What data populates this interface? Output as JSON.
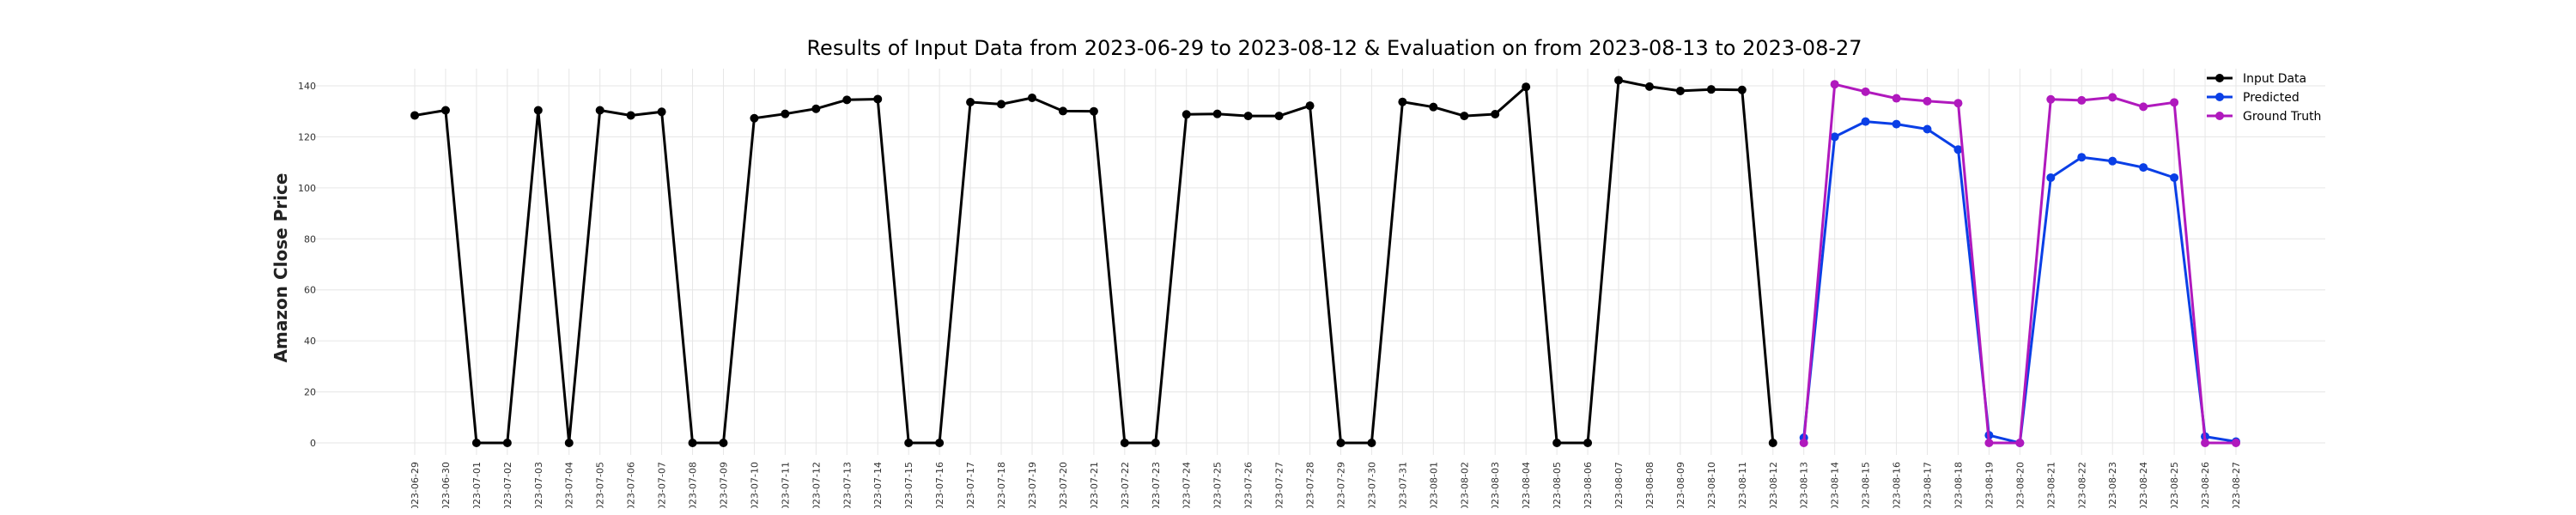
{
  "chart_data": {
    "type": "line",
    "title": "Results of Input Data from 2023-06-29 to 2023-08-12 & Evaluation on from 2023-08-13 to 2023-08-27",
    "xlabel": "",
    "ylabel": "Amazon Close Price",
    "ylim": [
      -8,
      150
    ],
    "yticks": [
      0,
      20,
      40,
      60,
      80,
      100,
      120,
      140
    ],
    "grid": true,
    "legend_position": "top-right",
    "x_tick_labels": [
      "2023-06-29",
      "2023-06-30",
      "2023-07-01",
      "2023-07-02",
      "2023-07-03",
      "2023-07-04",
      "2023-07-05",
      "2023-07-06",
      "2023-07-07",
      "2023-07-08",
      "2023-07-09",
      "2023-07-10",
      "2023-07-11",
      "2023-07-12",
      "2023-07-13",
      "2023-07-14",
      "2023-07-15",
      "2023-07-16",
      "2023-07-17",
      "2023-07-18",
      "2023-07-19",
      "2023-07-20",
      "2023-07-21",
      "2023-07-22",
      "2023-07-23",
      "2023-07-24",
      "2023-07-25",
      "2023-07-26",
      "2023-07-27",
      "2023-07-28",
      "2023-07-29",
      "2023-07-30",
      "2023-07-31",
      "2023-08-01",
      "2023-08-02",
      "2023-08-03",
      "2023-08-04",
      "2023-08-05",
      "2023-08-06",
      "2023-08-07",
      "2023-08-08",
      "2023-08-09",
      "2023-08-10",
      "2023-08-11",
      "2023-08-12",
      "2023-08-13",
      "2023-08-14",
      "2023-08-15",
      "2023-08-16",
      "2023-08-17",
      "2023-08-18",
      "2023-08-19",
      "2023-08-20",
      "2023-08-21",
      "2023-08-22",
      "2023-08-23",
      "2023-08-24",
      "2023-08-25",
      "2023-08-26",
      "2023-08-27"
    ],
    "series": [
      {
        "name": "Input Data",
        "color": "#000000",
        "x": [
          "2023-06-29",
          "2023-06-30",
          "2023-07-01",
          "2023-07-02",
          "2023-07-03",
          "2023-07-04",
          "2023-07-05",
          "2023-07-06",
          "2023-07-07",
          "2023-07-08",
          "2023-07-09",
          "2023-07-10",
          "2023-07-11",
          "2023-07-12",
          "2023-07-13",
          "2023-07-14",
          "2023-07-15",
          "2023-07-16",
          "2023-07-17",
          "2023-07-18",
          "2023-07-19",
          "2023-07-20",
          "2023-07-21",
          "2023-07-22",
          "2023-07-23",
          "2023-07-24",
          "2023-07-25",
          "2023-07-26",
          "2023-07-27",
          "2023-07-28",
          "2023-07-29",
          "2023-07-30",
          "2023-07-31",
          "2023-08-01",
          "2023-08-02",
          "2023-08-03",
          "2023-08-04",
          "2023-08-05",
          "2023-08-06",
          "2023-08-07",
          "2023-08-08",
          "2023-08-09",
          "2023-08-10",
          "2023-08-11",
          "2023-08-12"
        ],
        "values": [
          128.4,
          130.4,
          0,
          0,
          130.4,
          0,
          130.4,
          128.4,
          129.8,
          0,
          0,
          127.3,
          129.0,
          131.0,
          134.5,
          134.8,
          0,
          0,
          133.6,
          132.8,
          135.3,
          130.1,
          130.0,
          0,
          0,
          128.8,
          129.0,
          128.2,
          128.2,
          132.2,
          0,
          0,
          133.7,
          131.7,
          128.2,
          128.9,
          139.6,
          0,
          0,
          142.2,
          139.7,
          138.0,
          138.6,
          138.4,
          0
        ]
      },
      {
        "name": "Predicted",
        "color": "#0a3fe6",
        "x": [
          "2023-08-13",
          "2023-08-14",
          "2023-08-15",
          "2023-08-16",
          "2023-08-17",
          "2023-08-18",
          "2023-08-19",
          "2023-08-20",
          "2023-08-21",
          "2023-08-22",
          "2023-08-23",
          "2023-08-24",
          "2023-08-25",
          "2023-08-26",
          "2023-08-27"
        ],
        "values": [
          2.0,
          120.0,
          126.0,
          125.0,
          123.0,
          115.0,
          3.0,
          0,
          104.0,
          112.0,
          110.5,
          108.0,
          104.0,
          2.5,
          0.5
        ]
      },
      {
        "name": "Ground Truth",
        "color": "#b019bd",
        "x": [
          "2023-08-13",
          "2023-08-14",
          "2023-08-15",
          "2023-08-16",
          "2023-08-17",
          "2023-08-18",
          "2023-08-19",
          "2023-08-20",
          "2023-08-21",
          "2023-08-22",
          "2023-08-23",
          "2023-08-24",
          "2023-08-25",
          "2023-08-26",
          "2023-08-27"
        ],
        "values": [
          0,
          140.6,
          137.7,
          135.1,
          134.0,
          133.2,
          0,
          0,
          134.7,
          134.3,
          135.5,
          131.8,
          133.5,
          0,
          0
        ]
      }
    ]
  }
}
